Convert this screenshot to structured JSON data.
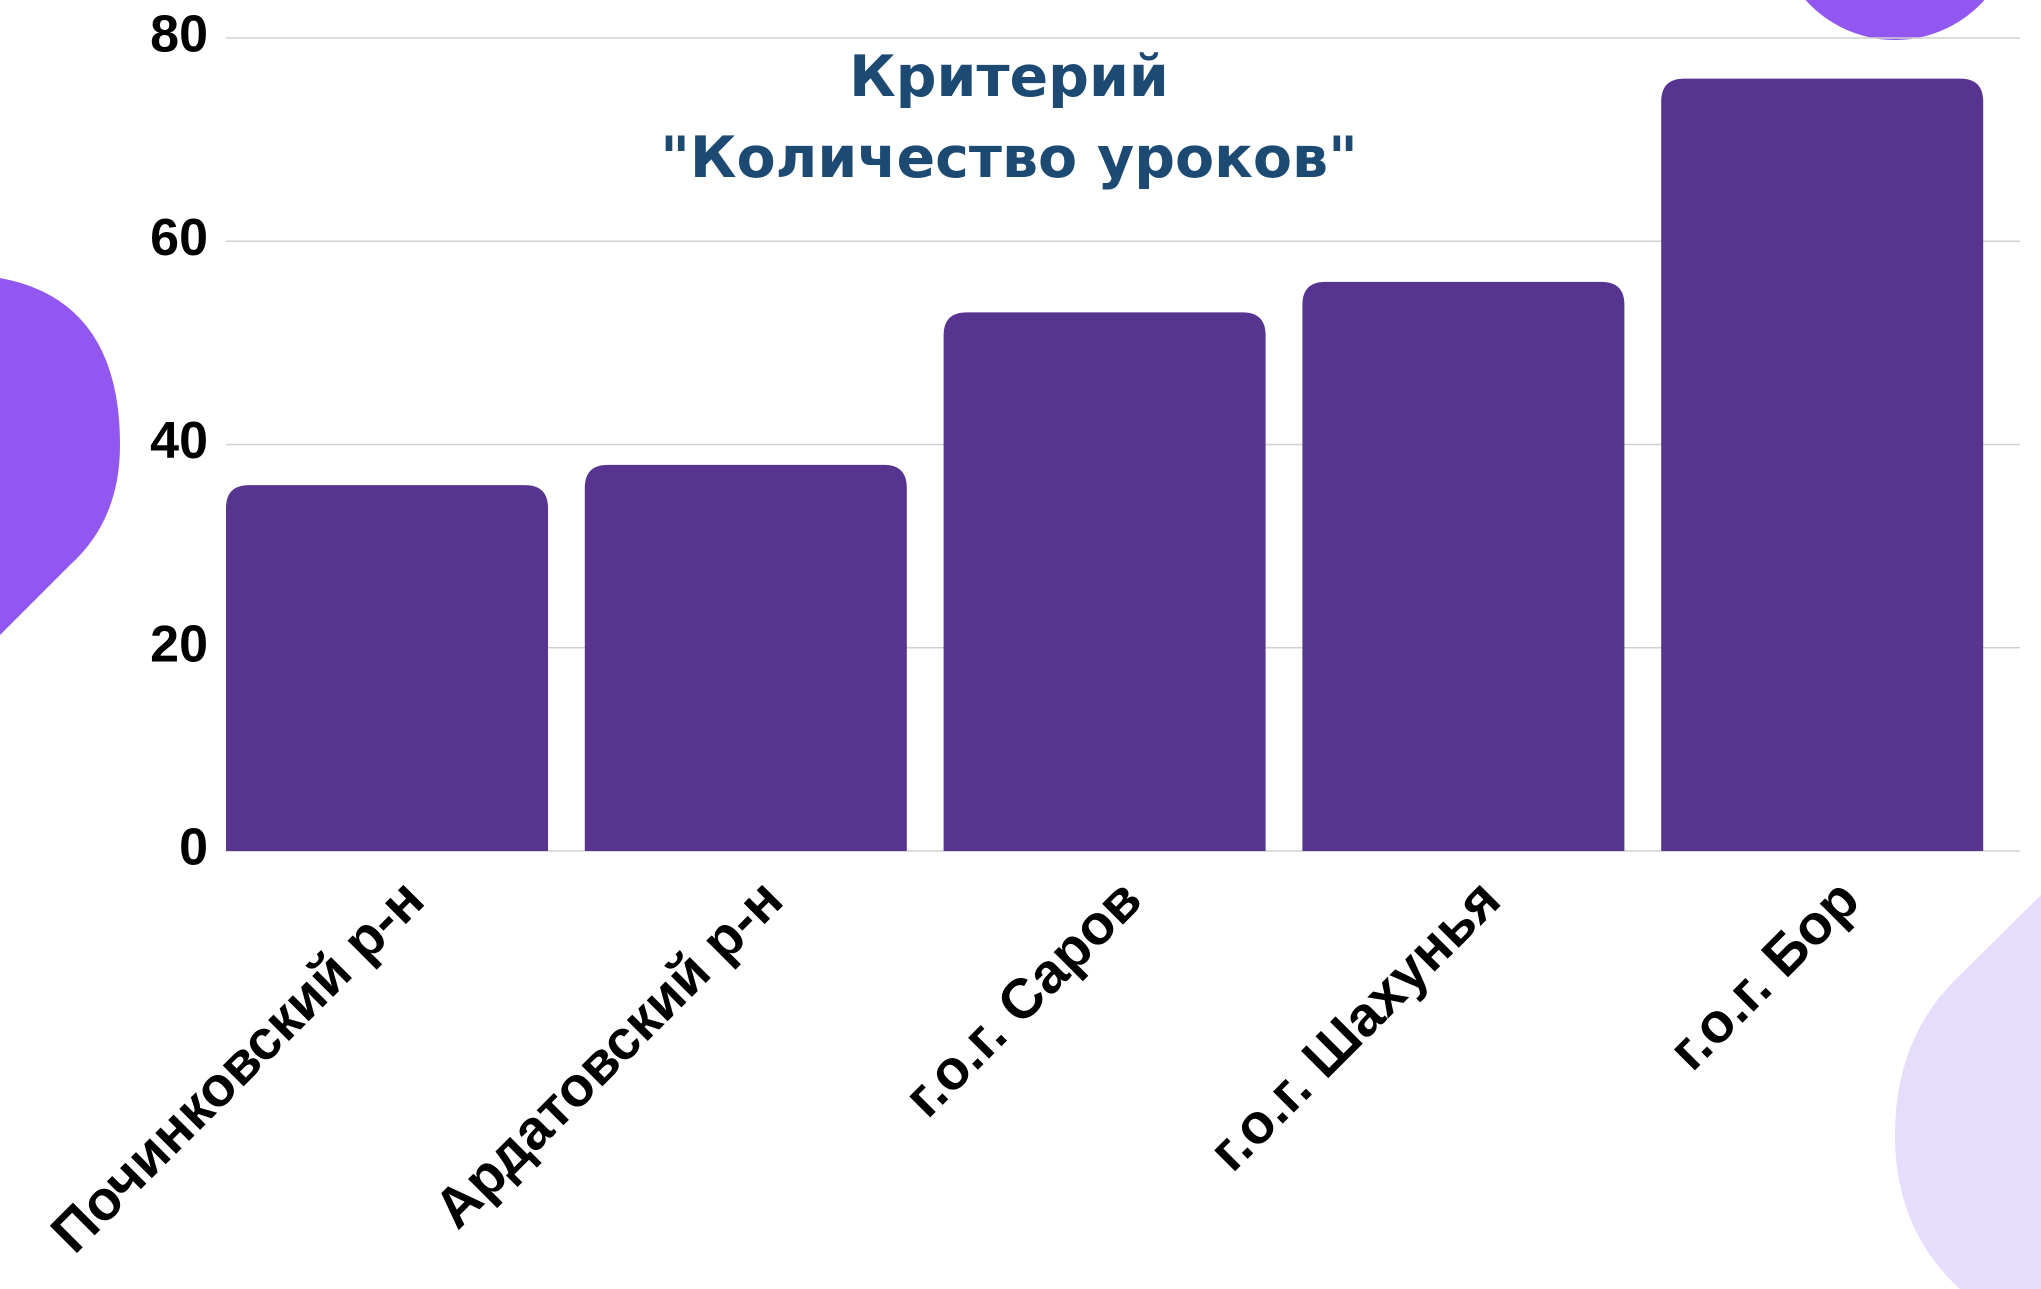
{
  "chart_data": {
    "type": "bar",
    "title": [
      "Критерий",
      "\"Количество уроков\""
    ],
    "categories": [
      "Починковский р-н",
      "Ардатовский р-н",
      "г.о.г. Саров",
      "г.о.г. Шахунья",
      "г.о.г. Бор"
    ],
    "values": [
      36,
      38,
      53,
      56,
      76
    ],
    "color": "#573490",
    "ylim": [
      0,
      80
    ],
    "yticks": [
      0,
      20,
      40,
      60,
      80
    ],
    "grid": true
  }
}
